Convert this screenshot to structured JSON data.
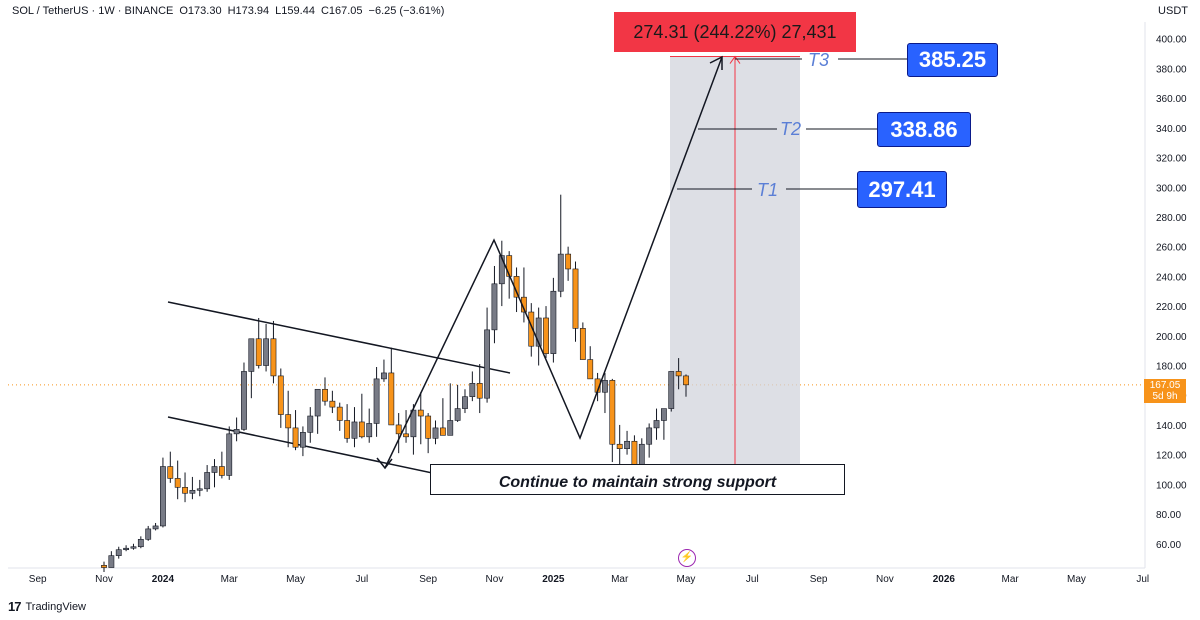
{
  "header": {
    "symbol": "SOL / TetherUS · 1W · BINANCE",
    "open": "O173.30",
    "high": "H173.94",
    "low": "L159.44",
    "close": "C167.05",
    "change": "−6.25 (−3.61%)"
  },
  "currency": "USDT",
  "last_price": {
    "value": "167.05",
    "countdown": "5d 9h"
  },
  "measure_banner": "274.31 (244.22%) 27,431",
  "targets": [
    {
      "name": "T1",
      "value": "297.41"
    },
    {
      "name": "T2",
      "value": "338.86"
    },
    {
      "name": "T3",
      "value": "385.25"
    }
  ],
  "support_text": "Continue to maintain strong support",
  "branding": "TradingView",
  "colors": {
    "up": "#787b86",
    "down": "#f7931a",
    "accent": "#2962ff",
    "banner": "#f23645"
  },
  "chart_data": {
    "type": "candlestick",
    "title": "",
    "xlabel": "",
    "ylabel": "",
    "ylim": [
      40,
      410
    ],
    "y_ticks": [
      "60.00",
      "80.00",
      "100.00",
      "120.00",
      "140.00",
      "160.00",
      "180.00",
      "200.00",
      "220.00",
      "240.00",
      "260.00",
      "280.00",
      "300.00",
      "320.00",
      "340.00",
      "360.00",
      "380.00",
      "400.00"
    ],
    "x_ticks": [
      "Sep",
      "Nov",
      "2024",
      "Mar",
      "May",
      "Jul",
      "Sep",
      "Nov",
      "2025",
      "Mar",
      "May",
      "Jul",
      "Sep",
      "Nov",
      "2026",
      "Mar",
      "May",
      "Jul"
    ],
    "x_tick_weeks": [
      -9,
      0,
      8,
      17,
      26,
      35,
      44,
      53,
      61,
      70,
      79,
      88,
      97,
      106,
      114,
      123,
      132,
      141
    ],
    "candles": [
      [
        45.5,
        41,
        48,
        44
      ],
      [
        44,
        44,
        55,
        52
      ],
      [
        52,
        50,
        58,
        56
      ],
      [
        56,
        55,
        59,
        57
      ],
      [
        57,
        56,
        60,
        58
      ],
      [
        58,
        57,
        65,
        63
      ],
      [
        63,
        62,
        72,
        70
      ],
      [
        70,
        69,
        74,
        72
      ],
      [
        72,
        71,
        118,
        112
      ],
      [
        112,
        101,
        122,
        104
      ],
      [
        104,
        90,
        116,
        98
      ],
      [
        98,
        88,
        108,
        94
      ],
      [
        94,
        90,
        105,
        96
      ],
      [
        96,
        92,
        103,
        97
      ],
      [
        97,
        95,
        113,
        108
      ],
      [
        108,
        98,
        117,
        112
      ],
      [
        112,
        104,
        122,
        106
      ],
      [
        106,
        103,
        139,
        134
      ],
      [
        134,
        129,
        145,
        137
      ],
      [
        137,
        136,
        182,
        176
      ],
      [
        176,
        158,
        198,
        198
      ],
      [
        198,
        178,
        212,
        180
      ],
      [
        180,
        176,
        208,
        198
      ],
      [
        198,
        168,
        210,
        173
      ],
      [
        173,
        138,
        178,
        147
      ],
      [
        147,
        125,
        163,
        138
      ],
      [
        138,
        123,
        150,
        125
      ],
      [
        125,
        119,
        139,
        135
      ],
      [
        135,
        128,
        152,
        146
      ],
      [
        146,
        134,
        164,
        164
      ],
      [
        164,
        153,
        172,
        156
      ],
      [
        156,
        148,
        163,
        152
      ],
      [
        152,
        136,
        155,
        143
      ],
      [
        143,
        128,
        154,
        131
      ],
      [
        131,
        125,
        152,
        142
      ],
      [
        142,
        131,
        161,
        132
      ],
      [
        132,
        128,
        151,
        141
      ],
      [
        141,
        132,
        179,
        171
      ],
      [
        171,
        169,
        184,
        175
      ],
      [
        175,
        155,
        192,
        140
      ],
      [
        140,
        121,
        148,
        134
      ],
      [
        134,
        128,
        150,
        132
      ],
      [
        132,
        120,
        154,
        150
      ],
      [
        150,
        127,
        162,
        146
      ],
      [
        146,
        121,
        148,
        131
      ],
      [
        131,
        127,
        143,
        138
      ],
      [
        138,
        133,
        158,
        133
      ],
      [
        133,
        136,
        168,
        143
      ],
      [
        143,
        142,
        167,
        151
      ],
      [
        151,
        148,
        164,
        159
      ],
      [
        159,
        156,
        176,
        168
      ],
      [
        168,
        148,
        181,
        158
      ],
      [
        158,
        155,
        219,
        204
      ],
      [
        204,
        195,
        247,
        235
      ],
      [
        235,
        220,
        264,
        254
      ],
      [
        254,
        225,
        257,
        240
      ],
      [
        240,
        216,
        246,
        226
      ],
      [
        226,
        209,
        246,
        216
      ],
      [
        216,
        186,
        222,
        193
      ],
      [
        193,
        180,
        219,
        212
      ],
      [
        212,
        185,
        220,
        188
      ],
      [
        188,
        182,
        239,
        230
      ],
      [
        230,
        226,
        295,
        255
      ],
      [
        255,
        237,
        260,
        245
      ],
      [
        245,
        196,
        250,
        205
      ],
      [
        205,
        184,
        209,
        184
      ],
      [
        184,
        171,
        193,
        171
      ],
      [
        171,
        156,
        175,
        162
      ],
      [
        162,
        148,
        175,
        170
      ],
      [
        170,
        115,
        171,
        127
      ],
      [
        127,
        113,
        140,
        124
      ],
      [
        124,
        120,
        136,
        129
      ],
      [
        129,
        104,
        133,
        111
      ],
      [
        111,
        109,
        131,
        127
      ],
      [
        127,
        118,
        141,
        138
      ],
      [
        138,
        130,
        151,
        143
      ],
      [
        143,
        130,
        150,
        151
      ],
      [
        151,
        149,
        170,
        176
      ],
      [
        176,
        164,
        185,
        173
      ],
      [
        173,
        159,
        174,
        167
      ]
    ]
  }
}
